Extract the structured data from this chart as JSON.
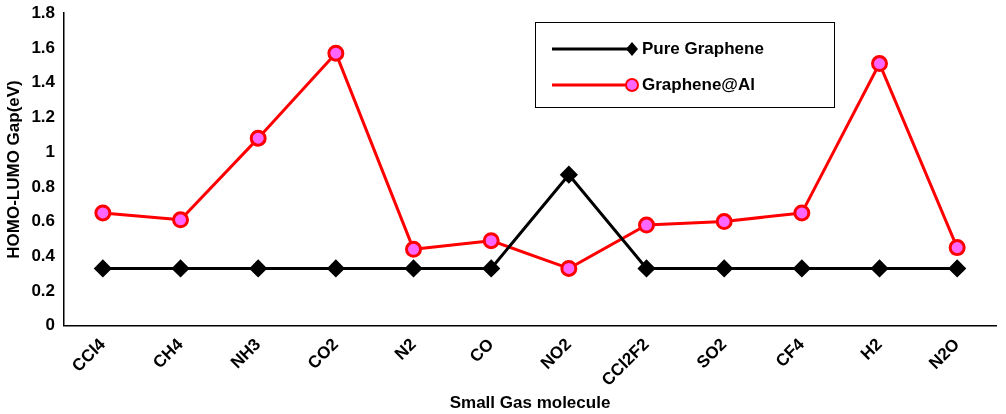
{
  "chart_data": {
    "type": "line",
    "xlabel": "Small Gas molecule",
    "ylabel": "HOMO-LUMO Gap(eV)",
    "categories": [
      "CCl4",
      "CH4",
      "NH3",
      "CO2",
      "N2",
      "CO",
      "NO2",
      "CCl2F2",
      "SO2",
      "CF4",
      "H2",
      "N2O"
    ],
    "series": [
      {
        "name": "Pure Graphene",
        "color": "#000000",
        "marker": "diamond",
        "values": [
          0.33,
          0.33,
          0.33,
          0.33,
          0.33,
          0.33,
          0.87,
          0.33,
          0.33,
          0.33,
          0.33,
          0.33
        ]
      },
      {
        "name": "Graphene@Al",
        "color": "#ff0000",
        "marker": "circle",
        "values": [
          0.65,
          0.61,
          1.08,
          1.57,
          0.44,
          0.49,
          0.33,
          0.58,
          0.6,
          0.65,
          1.51,
          0.45
        ]
      }
    ],
    "ylim": [
      0,
      1.8
    ],
    "yticks": [
      0,
      0.2,
      0.4,
      0.6,
      0.8,
      1,
      1.2,
      1.4,
      1.6,
      1.8
    ],
    "grid": false,
    "legend": "top right"
  }
}
